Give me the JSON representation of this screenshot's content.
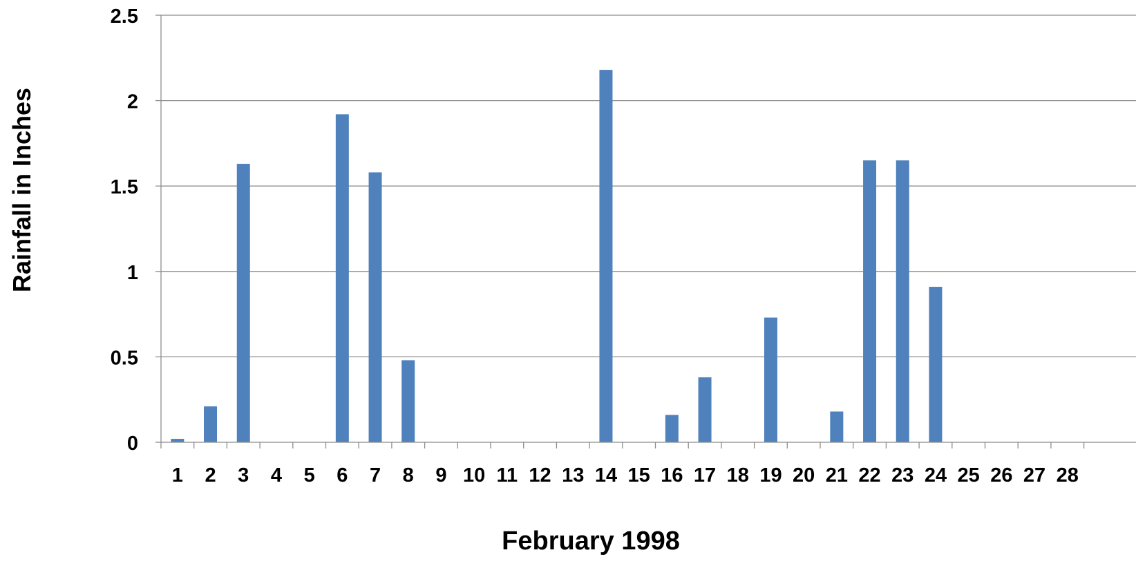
{
  "chart_data": {
    "type": "bar",
    "title": "",
    "xlabel": "February 1998",
    "ylabel": "Rainfall in Inches",
    "ylim": [
      0,
      2.5
    ],
    "yticks": [
      "0",
      "0.5",
      "1",
      "1.5",
      "2",
      "2.5"
    ],
    "grid": true,
    "legend": "none",
    "bar_color": "#4f81bd",
    "categories": [
      "1",
      "2",
      "3",
      "4",
      "5",
      "6",
      "7",
      "8",
      "9",
      "10",
      "11",
      "12",
      "13",
      "14",
      "15",
      "16",
      "17",
      "18",
      "19",
      "20",
      "21",
      "22",
      "23",
      "24",
      "25",
      "26",
      "27",
      "28"
    ],
    "values": [
      0.02,
      0.21,
      1.63,
      0,
      0,
      1.92,
      1.58,
      0.48,
      0,
      0,
      0,
      0,
      0,
      2.18,
      0,
      0.16,
      0.38,
      0,
      0.73,
      0,
      0.18,
      1.65,
      1.65,
      0.91,
      0,
      0,
      0,
      0
    ]
  }
}
